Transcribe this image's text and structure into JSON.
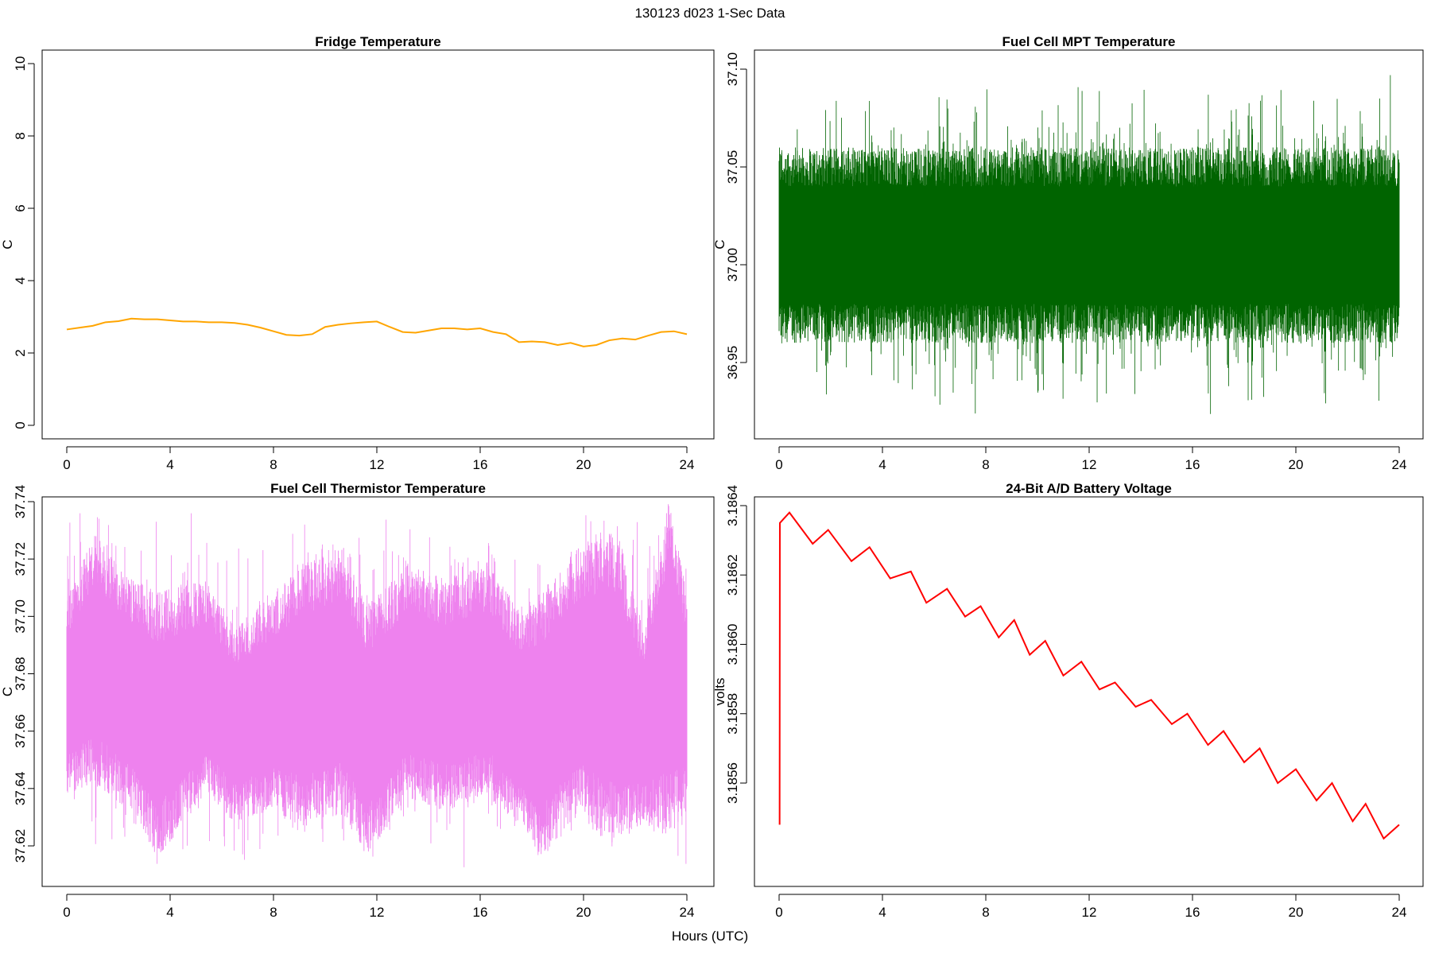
{
  "figure": {
    "title": "130123   d023   1-Sec Data",
    "xlabel": "Hours (UTC)"
  },
  "chart_data": [
    {
      "type": "line",
      "title": "Fridge Temperature",
      "xlabel": "",
      "ylabel": "C",
      "xlim": [
        0,
        24
      ],
      "ylim": [
        0,
        10
      ],
      "x_ticks": [
        "0",
        "4",
        "8",
        "12",
        "16",
        "20",
        "24"
      ],
      "y_ticks": [
        "0",
        "2",
        "4",
        "6",
        "8",
        "10"
      ],
      "color": "#FFA500",
      "series": [
        {
          "x": [
            0,
            0.5,
            1,
            1.5,
            2,
            2.5,
            3,
            3.5,
            4,
            4.5,
            5,
            5.5,
            6,
            6.5,
            7,
            7.5,
            8,
            8.5,
            9,
            9.5,
            10,
            10.5,
            11,
            11.5,
            12,
            12.5,
            13,
            13.5,
            14,
            14.5,
            15,
            15.5,
            16,
            16.5,
            17,
            17.5,
            18,
            18.5,
            19,
            19.5,
            20,
            20.5,
            21,
            21.5,
            22,
            22.5,
            23,
            23.5,
            24
          ],
          "values": [
            2.65,
            2.7,
            2.75,
            2.85,
            2.88,
            2.95,
            2.93,
            2.93,
            2.9,
            2.87,
            2.87,
            2.85,
            2.85,
            2.83,
            2.78,
            2.7,
            2.6,
            2.5,
            2.48,
            2.52,
            2.72,
            2.78,
            2.82,
            2.85,
            2.87,
            2.72,
            2.58,
            2.56,
            2.62,
            2.68,
            2.68,
            2.65,
            2.68,
            2.58,
            2.52,
            2.3,
            2.32,
            2.3,
            2.22,
            2.28,
            2.18,
            2.22,
            2.35,
            2.4,
            2.37,
            2.48,
            2.58,
            2.6,
            2.52
          ]
        }
      ]
    },
    {
      "type": "line",
      "title": "Fuel Cell MPT Temperature",
      "xlabel": "",
      "ylabel": "C",
      "xlim": [
        0,
        24
      ],
      "ylim": [
        36.92,
        37.1
      ],
      "x_ticks": [
        "0",
        "4",
        "8",
        "12",
        "16",
        "20",
        "24"
      ],
      "y_ticks": [
        "36.95",
        "37.00",
        "37.05",
        "37.10"
      ],
      "color": "#006400",
      "series": [
        {
          "x": [
            0,
            2,
            4,
            6,
            8,
            10,
            12,
            14,
            16,
            18,
            20,
            22,
            24
          ],
          "values": [
            37.0,
            37.0,
            37.0,
            37.0,
            37.0,
            37.0,
            37.0,
            37.0,
            37.0,
            37.0,
            37.0,
            37.0,
            37.0
          ],
          "band_high": [
            37.05,
            37.05,
            37.05,
            37.05,
            37.05,
            37.05,
            37.05,
            37.05,
            37.05,
            37.05,
            37.05,
            37.05,
            37.05
          ],
          "band_low": [
            36.97,
            36.97,
            36.97,
            36.97,
            36.97,
            36.97,
            36.97,
            36.97,
            36.97,
            36.97,
            36.97,
            36.97,
            36.97
          ],
          "max": 37.1,
          "min": 36.92
        }
      ]
    },
    {
      "type": "line",
      "title": "Fuel Cell Thermistor Temperature",
      "xlabel": "",
      "ylabel": "C",
      "xlim": [
        0,
        24
      ],
      "ylim": [
        37.615,
        37.74
      ],
      "x_ticks": [
        "0",
        "4",
        "8",
        "12",
        "16",
        "20",
        "24"
      ],
      "y_ticks": [
        "37.62",
        "37.64",
        "37.66",
        "37.68",
        "37.70",
        "37.72",
        "37.74"
      ],
      "color": "#EE82EE",
      "series": [
        {
          "x": [
            0,
            1.1,
            2.5,
            3.5,
            5.4,
            6.5,
            8,
            9.2,
            10.7,
            11.6,
            13.2,
            14.6,
            16.3,
            17.5,
            18.4,
            19.8,
            21.3,
            22.3,
            23.3,
            24
          ],
          "band_high": [
            37.7,
            37.72,
            37.705,
            37.7,
            37.705,
            37.69,
            37.7,
            37.71,
            37.715,
            37.695,
            37.71,
            37.705,
            37.71,
            37.695,
            37.7,
            37.715,
            37.72,
            37.69,
            37.73,
            37.7
          ],
          "band_low": [
            37.645,
            37.65,
            37.64,
            37.625,
            37.645,
            37.635,
            37.64,
            37.635,
            37.64,
            37.625,
            37.645,
            37.64,
            37.645,
            37.635,
            37.625,
            37.64,
            37.63,
            37.635,
            37.635,
            37.64
          ],
          "max": 37.738,
          "min": 37.612
        }
      ]
    },
    {
      "type": "line",
      "title": "24-Bit A/D Battery Voltage",
      "xlabel": "",
      "ylabel": "volts",
      "xlim": [
        0,
        24
      ],
      "ylim": [
        3.18545,
        3.18643
      ],
      "x_ticks": [
        "0",
        "4",
        "8",
        "12",
        "16",
        "20",
        "24"
      ],
      "y_ticks": [
        "3.1856",
        "3.1858",
        "3.1860",
        "3.1862",
        "3.1864"
      ],
      "color": "#FF0000",
      "series": [
        {
          "x": [
            0.02,
            0.03,
            0.4,
            1.3,
            1.9,
            2.8,
            3.5,
            4.3,
            5.1,
            5.7,
            6.5,
            7.2,
            7.8,
            8.5,
            9.1,
            9.7,
            10.3,
            11.0,
            11.7,
            12.4,
            13.0,
            13.8,
            14.4,
            15.2,
            15.8,
            16.6,
            17.2,
            18.0,
            18.6,
            19.3,
            20.0,
            20.8,
            21.4,
            22.2,
            22.7,
            23.4,
            24.0
          ],
          "values": [
            3.18548,
            3.18635,
            3.18638,
            3.18629,
            3.18633,
            3.18624,
            3.18628,
            3.18619,
            3.18621,
            3.18612,
            3.18616,
            3.18608,
            3.18611,
            3.18602,
            3.18607,
            3.18597,
            3.18601,
            3.18591,
            3.18595,
            3.18587,
            3.18589,
            3.18582,
            3.18584,
            3.18577,
            3.1858,
            3.18571,
            3.18575,
            3.18566,
            3.1857,
            3.1856,
            3.18564,
            3.18555,
            3.1856,
            3.18549,
            3.18554,
            3.18544,
            3.18548
          ]
        }
      ]
    }
  ]
}
